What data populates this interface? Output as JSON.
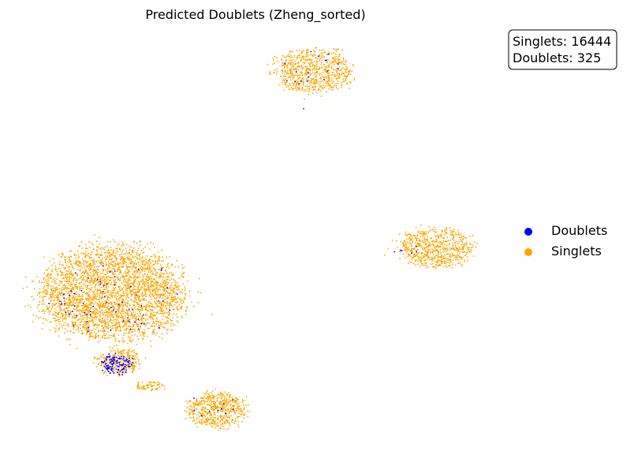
{
  "chart_data": {
    "type": "scatter",
    "title": "Predicted Doublets (Zheng_sorted)",
    "xlabel": "",
    "ylabel": "",
    "axes_visible": false,
    "grid": false,
    "legend_position": "right",
    "annotation": {
      "lines": [
        "Singlets: 16444",
        "Doublets: 325"
      ],
      "position": "top-right"
    },
    "counts": {
      "Singlets": 16444,
      "Doublets": 325
    },
    "series": [
      {
        "name": "Doublets",
        "color": "#0000ff"
      },
      {
        "name": "Singlets",
        "color": "#ffa500"
      }
    ]
  }
}
